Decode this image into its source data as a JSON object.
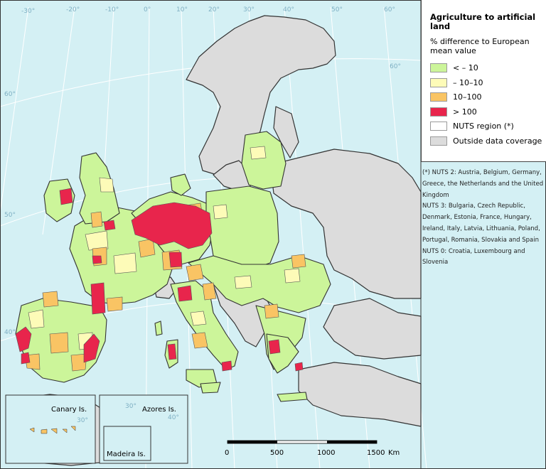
{
  "legend": {
    "title": "Agriculture to artificial land",
    "subtitle": "% difference to European mean value",
    "items": [
      {
        "label": "< – 10",
        "color": "#ccf59a"
      },
      {
        "label": "– 10–10",
        "color": "#fdfbb8"
      },
      {
        "label": "10–100",
        "color": "#f9c464"
      },
      {
        "label": "> 100",
        "color": "#e8254c"
      },
      {
        "label": "NUTS region (*)",
        "color": "#ffffff"
      },
      {
        "label": "Outside data coverage",
        "color": "#dcdcdc"
      }
    ]
  },
  "notes": [
    "(*) NUTS 2: Austria, Belgium, Germany, Greece, the Netherlands and the United Kingdom",
    "NUTS 3: Bulgaria, Czech Republic, Denmark, Estonia, France, Hungary, Ireland, Italy, Latvia, Lithuania, Poland, Portugal, Romania, Slovakia and Spain",
    "NUTS 0: Croatia, Luxembourg and Slovenia"
  ],
  "graticule": {
    "longitudes": [
      "-30°",
      "-20°",
      "-10°",
      "0°",
      "10°",
      "20°",
      "30°",
      "40°",
      "50°",
      "60°"
    ],
    "latitudes": [
      "60°",
      "50°",
      "40°"
    ]
  },
  "insets": {
    "canary": "Canary Is.",
    "azores": "Azores Is.",
    "madeira": "Madeira Is.",
    "canary_lat": "30°",
    "azores_lat": "30°",
    "azores_lon": "40°"
  },
  "scale_bar": {
    "ticks": [
      "0",
      "500",
      "1000",
      "1500"
    ],
    "unit": "Km"
  },
  "colors": {
    "sea": "#d4f0f4",
    "outside": "#dcdcdc",
    "border": "#333333"
  }
}
